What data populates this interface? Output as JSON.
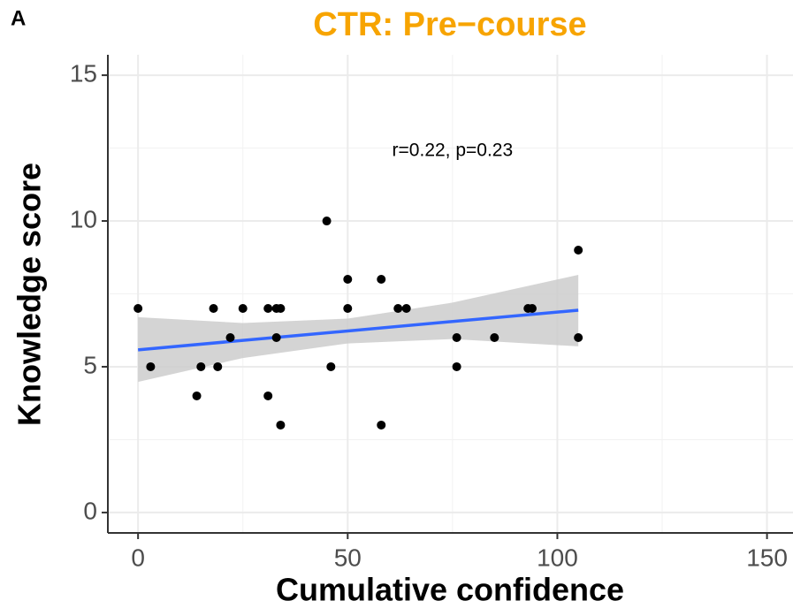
{
  "chart_data": {
    "type": "scatter",
    "panel_label": "A",
    "title": "CTR: Pre−course",
    "title_color": "#f7a400",
    "x_label": "Cumulative confidence",
    "y_label": "Knowledge score",
    "x": [
      0,
      3,
      14,
      15,
      18,
      22,
      19,
      25,
      31,
      31,
      33,
      34,
      33,
      34,
      45,
      46,
      50,
      50,
      58,
      58,
      62,
      64,
      76,
      76,
      85,
      93,
      94,
      105,
      105
    ],
    "values": [
      7,
      5,
      4,
      5,
      7,
      6,
      5,
      7,
      7,
      4,
      7,
      7,
      6,
      3,
      10,
      5,
      8,
      7,
      8,
      3,
      7,
      7,
      6,
      5,
      6,
      7,
      7,
      9,
      6
    ],
    "color": "#000000",
    "fit": {
      "x": [
        0,
        105
      ],
      "values": [
        5.58,
        6.94
      ],
      "color": "#3366ff"
    },
    "band": {
      "x": [
        0,
        25,
        50,
        75,
        105
      ],
      "lower": [
        4.48,
        5.3,
        5.8,
        5.95,
        5.7
      ],
      "upper": [
        6.7,
        6.5,
        6.65,
        7.2,
        8.15
      ],
      "color": "#cccccc"
    },
    "annotation": {
      "text": "r=0.22, p=0.23",
      "x": 75,
      "y": 12.4
    },
    "xlim": [
      -7.2,
      156.2
    ],
    "ylim": [
      -0.7,
      15.7
    ],
    "xticks": [
      0,
      50,
      100,
      150
    ],
    "yticks": [
      0,
      5,
      10,
      15
    ],
    "xminor": [
      25,
      75,
      125
    ],
    "yminor": [
      2.5,
      7.5,
      12.5
    ],
    "grid": true
  }
}
